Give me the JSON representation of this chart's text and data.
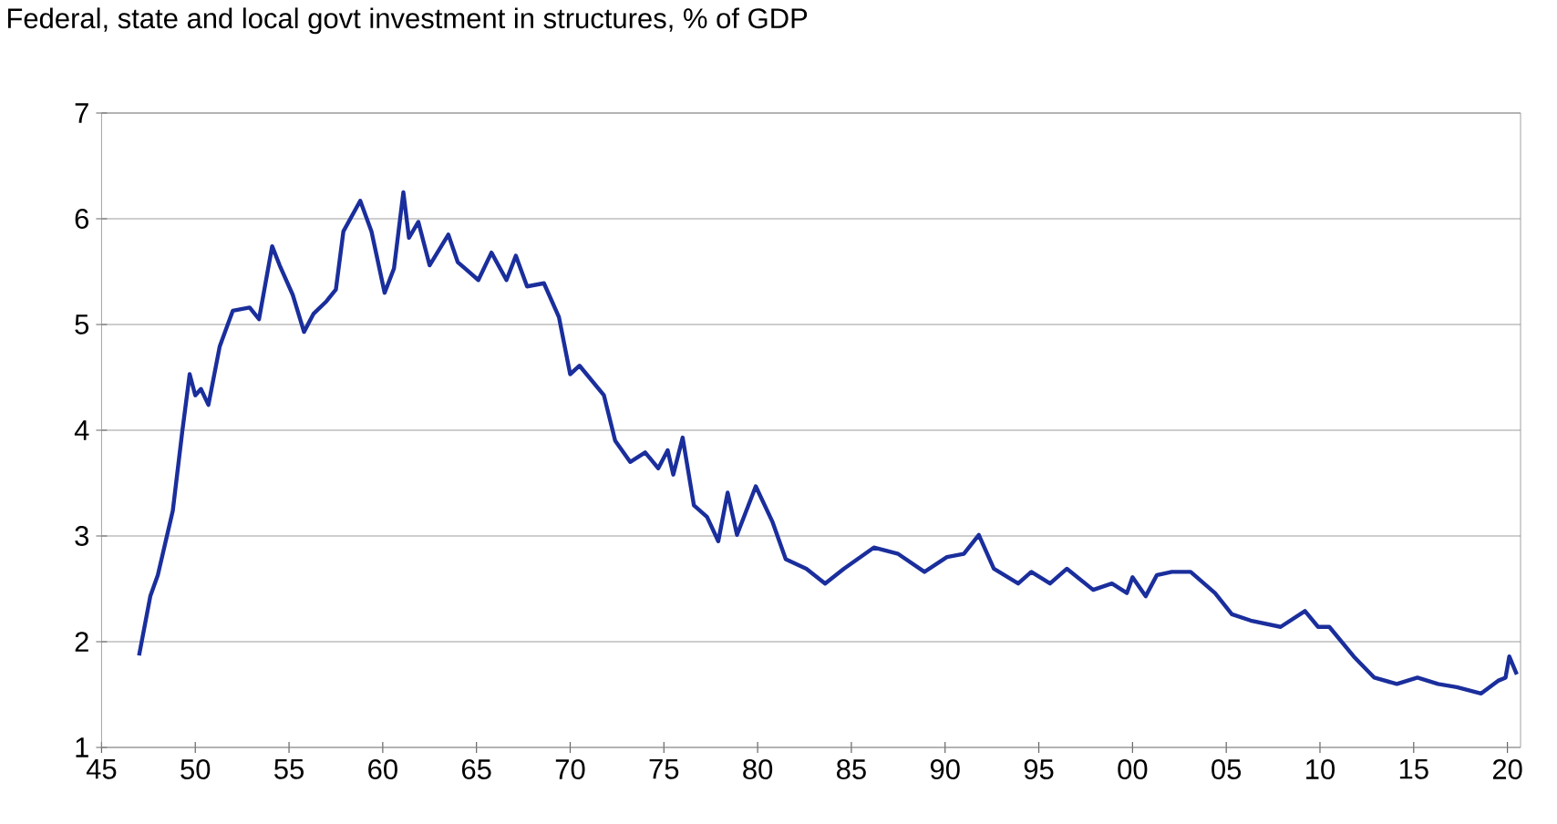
{
  "chart_data": {
    "type": "line",
    "title": "Federal, state and local govt investment in structures, % of GDP",
    "x": [
      1947.0,
      1947.6,
      1948.0,
      1948.5,
      1948.8,
      1949.3,
      1949.7,
      1950.0,
      1950.3,
      1950.7,
      1951.3,
      1952.0,
      1952.9,
      1953.4,
      1954.1,
      1954.5,
      1955.2,
      1955.8,
      1956.3,
      1957.0,
      1957.5,
      1957.9,
      1958.8,
      1959.4,
      1960.1,
      1960.6,
      1961.1,
      1961.4,
      1961.9,
      1962.5,
      1963.5,
      1964.0,
      1965.1,
      1965.8,
      1966.6,
      1967.1,
      1967.7,
      1968.6,
      1969.4,
      1970.0,
      1970.5,
      1971.8,
      1972.4,
      1973.2,
      1974.0,
      1974.7,
      1975.2,
      1975.5,
      1976.0,
      1976.6,
      1977.3,
      1977.9,
      1978.4,
      1978.9,
      1979.9,
      1980.8,
      1981.5,
      1982.6,
      1983.6,
      1984.6,
      1986.2,
      1987.5,
      1988.9,
      1990.1,
      1991.0,
      1991.8,
      1992.6,
      1993.9,
      1994.6,
      1995.6,
      1996.5,
      1997.9,
      1998.9,
      1999.7,
      2000.0,
      2000.7,
      2001.3,
      2002.1,
      2003.1,
      2004.4,
      2005.3,
      2006.3,
      2007.9,
      2009.2,
      2009.9,
      2010.5,
      2011.8,
      2012.9,
      2014.1,
      2015.2,
      2016.3,
      2017.3,
      2018.6,
      2019.5,
      2019.9,
      2020.1,
      2020.5
    ],
    "series": [
      {
        "color": "#1a2e9c",
        "values": [
          1.87,
          2.43,
          2.63,
          3.01,
          3.24,
          3.98,
          4.53,
          4.33,
          4.39,
          4.24,
          4.79,
          5.13,
          5.16,
          5.05,
          5.74,
          5.56,
          5.28,
          4.93,
          5.1,
          5.22,
          5.33,
          5.88,
          6.17,
          5.88,
          5.3,
          5.53,
          6.25,
          5.82,
          5.97,
          5.56,
          5.85,
          5.59,
          5.42,
          5.68,
          5.42,
          5.65,
          5.36,
          5.39,
          5.07,
          4.53,
          4.61,
          4.33,
          3.9,
          3.7,
          3.79,
          3.64,
          3.81,
          3.58,
          3.93,
          3.29,
          3.18,
          2.95,
          3.41,
          3.01,
          3.47,
          3.13,
          2.78,
          2.69,
          2.55,
          2.69,
          2.89,
          2.83,
          2.66,
          2.8,
          2.83,
          3.01,
          2.69,
          2.55,
          2.66,
          2.55,
          2.69,
          2.49,
          2.55,
          2.46,
          2.61,
          2.43,
          2.63,
          2.66,
          2.66,
          2.46,
          2.26,
          2.2,
          2.14,
          2.29,
          2.14,
          2.14,
          1.86,
          1.66,
          1.6,
          1.66,
          1.6,
          1.57,
          1.51,
          1.63,
          1.66,
          1.86,
          1.69
        ]
      }
    ],
    "xlim": [
      1945,
      2020.7
    ],
    "xticks": [
      {
        "value": 1945,
        "label": "45"
      },
      {
        "value": 1950,
        "label": "50"
      },
      {
        "value": 1955,
        "label": "55"
      },
      {
        "value": 1960,
        "label": "60"
      },
      {
        "value": 1965,
        "label": "65"
      },
      {
        "value": 1970,
        "label": "70"
      },
      {
        "value": 1975,
        "label": "75"
      },
      {
        "value": 1980,
        "label": "80"
      },
      {
        "value": 1985,
        "label": "85"
      },
      {
        "value": 1990,
        "label": "90"
      },
      {
        "value": 1995,
        "label": "95"
      },
      {
        "value": 2000,
        "label": "00"
      },
      {
        "value": 2005,
        "label": "05"
      },
      {
        "value": 2010,
        "label": "10"
      },
      {
        "value": 2015,
        "label": "15"
      },
      {
        "value": 2020,
        "label": "20"
      }
    ],
    "ylim": [
      1,
      7
    ],
    "yticks": [
      1,
      2,
      3,
      4,
      5,
      6,
      7
    ],
    "grid": "y",
    "marker": "none",
    "line_style": "solid"
  }
}
